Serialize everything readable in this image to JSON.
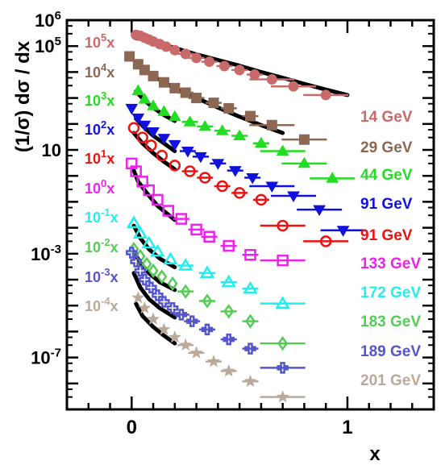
{
  "chart_data": {
    "type": "scatter",
    "title": "",
    "xlabel": "x",
    "ylabel": "(1/σ) dσ / dx",
    "xlim": [
      -0.3,
      1.4
    ],
    "ylim": [
      1e-09,
      1000000.0
    ],
    "yscale": "log",
    "grid": false,
    "x_ticks": [
      "0",
      "1"
    ],
    "y_ticks": [
      {
        "base": "10",
        "exp": "6"
      },
      {
        "base": "10",
        "exp": "5"
      },
      {
        "base": "10",
        "exp": ""
      },
      {
        "base": "10",
        "exp": "-3"
      },
      {
        "base": "10",
        "exp": "-7"
      }
    ],
    "series": [
      {
        "name": "14 GeV",
        "scale": {
          "base": "10",
          "exp": "5",
          "suffix": "x"
        },
        "color": "#c96a6a",
        "marker": "circle",
        "x": [
          0.02,
          0.04,
          0.06,
          0.08,
          0.1,
          0.13,
          0.16,
          0.2,
          0.25,
          0.3,
          0.36,
          0.43,
          0.5,
          0.57,
          0.65,
          0.75,
          0.9
        ],
        "y": [
          270000,
          250000,
          210000,
          180000,
          150000,
          120000,
          95000,
          70000,
          50000,
          35000,
          25000,
          17000,
          12000,
          8000,
          5200,
          2800,
          1300
        ]
      },
      {
        "name": "29 GeV",
        "scale": {
          "base": "10",
          "exp": "4",
          "suffix": "x"
        },
        "color": "#8c6752",
        "marker": "square",
        "x": [
          -0.01,
          0.03,
          0.06,
          0.1,
          0.15,
          0.2,
          0.25,
          0.3,
          0.38,
          0.45,
          0.55,
          0.65,
          0.8
        ],
        "y": [
          40000,
          20000,
          12000,
          7000,
          4000,
          2400,
          1600,
          1000,
          650,
          400,
          200,
          90,
          25
        ]
      },
      {
        "name": "44 GeV",
        "scale": {
          "base": "10",
          "exp": "3",
          "suffix": "x"
        },
        "color": "#22dd22",
        "marker": "triangle-up",
        "x": [
          0.03,
          0.06,
          0.1,
          0.15,
          0.2,
          0.27,
          0.34,
          0.42,
          0.5,
          0.6,
          0.7,
          0.8,
          0.93
        ],
        "y": [
          1900,
          900,
          500,
          300,
          190,
          120,
          80,
          55,
          35,
          18,
          9,
          3,
          0.8
        ]
      },
      {
        "name": "91 GeV",
        "scale": {
          "base": "10",
          "exp": "2",
          "suffix": "x"
        },
        "color": "#1111dd",
        "marker": "triangle-down",
        "x": [
          0.0,
          0.03,
          0.06,
          0.1,
          0.15,
          0.2,
          0.26,
          0.32,
          0.4,
          0.48,
          0.56,
          0.65,
          0.75,
          0.87,
          0.98
        ],
        "y": [
          400,
          170,
          90,
          50,
          28,
          16,
          9,
          5.5,
          3,
          1.6,
          0.85,
          0.4,
          0.17,
          0.05,
          0.008
        ]
      },
      {
        "name": "91 GeV",
        "scale": {
          "base": "10",
          "exp": "1",
          "suffix": "x"
        },
        "color": "#ee1111",
        "marker": "circle-open",
        "x": [
          0.01,
          0.05,
          0.09,
          0.14,
          0.2,
          0.27,
          0.34,
          0.42,
          0.5,
          0.6,
          0.7,
          0.9
        ],
        "y": [
          70,
          30,
          15,
          6,
          2.5,
          1.5,
          0.85,
          0.4,
          0.22,
          0.12,
          0.012,
          0.003
        ]
      },
      {
        "name": "133 GeV",
        "scale": {
          "base": "10",
          "exp": "0",
          "suffix": "x"
        },
        "color": "#ee22ee",
        "marker": "square-open",
        "x": [
          0.0,
          0.02,
          0.05,
          0.08,
          0.12,
          0.17,
          0.23,
          0.3,
          0.36,
          0.45,
          0.55,
          0.7
        ],
        "y": [
          3,
          1.5,
          0.6,
          0.28,
          0.12,
          0.045,
          0.022,
          0.0085,
          0.0045,
          0.002,
          0.0009,
          0.00055
        ]
      },
      {
        "name": "172 GeV",
        "scale": {
          "base": "10",
          "exp": "-1",
          "suffix": "x"
        },
        "color": "#22eeee",
        "marker": "triangle-up-open",
        "x": [
          0.01,
          0.04,
          0.08,
          0.12,
          0.18,
          0.25,
          0.35,
          0.45,
          0.55,
          0.7
        ],
        "y": [
          0.015,
          0.006,
          0.0025,
          0.0012,
          0.0006,
          0.00035,
          0.00018,
          8e-05,
          4.5e-05,
          1.2e-05
        ]
      },
      {
        "name": "183 GeV",
        "scale": {
          "base": "10",
          "exp": "-2",
          "suffix": "x"
        },
        "color": "#55cc55",
        "marker": "diamond-open",
        "x": [
          0.01,
          0.04,
          0.07,
          0.1,
          0.14,
          0.19,
          0.25,
          0.35,
          0.45,
          0.55,
          0.7
        ],
        "y": [
          0.0015,
          0.0008,
          0.0004,
          0.00022,
          0.00013,
          7e-05,
          3.5e-05,
          1.5e-05,
          6e-06,
          2.5e-06,
          3.5e-07
        ]
      },
      {
        "name": "189 GeV",
        "scale": {
          "base": "10",
          "exp": "-3",
          "suffix": "x"
        },
        "color": "#5555cc",
        "marker": "cross-open",
        "x": [
          0.0,
          0.02,
          0.04,
          0.06,
          0.09,
          0.12,
          0.15,
          0.19,
          0.23,
          0.28,
          0.35,
          0.45,
          0.55,
          0.7
        ],
        "y": [
          0.0011,
          0.0005,
          0.00022,
          0.0001,
          5e-05,
          2.5e-05,
          1.4e-05,
          8e-06,
          4.5e-06,
          2.5e-06,
          1.2e-06,
          5e-07,
          2.2e-07,
          4e-08
        ]
      },
      {
        "name": "201 GeV",
        "scale": {
          "base": "10",
          "exp": "-4",
          "suffix": "x"
        },
        "color": "#bbaa99",
        "marker": "star",
        "x": [
          0.03,
          0.06,
          0.1,
          0.15,
          0.2,
          0.25,
          0.3,
          0.38,
          0.45,
          0.55,
          0.7
        ],
        "y": [
          2e-05,
          8e-06,
          3e-06,
          1.2e-06,
          6e-07,
          3e-07,
          1.5e-07,
          7e-08,
          3e-08,
          1.2e-08,
          3e-09
        ]
      }
    ],
    "fits": [
      {
        "x": [
          0.02,
          0.05,
          0.1,
          0.2,
          0.3,
          0.4,
          0.5,
          0.6,
          0.7,
          0.8,
          0.9,
          1.0
        ],
        "y": [
          200000,
          190000,
          150000,
          85000,
          48000,
          29000,
          17500,
          10000,
          6000,
          3500,
          2100,
          1300
        ]
      },
      {
        "x": [
          0.02,
          0.05,
          0.1,
          0.15,
          0.2,
          0.3,
          0.4,
          0.5,
          0.6,
          0.7
        ],
        "y": [
          25000,
          14000,
          7000,
          4000,
          2400,
          1000,
          430,
          190,
          90,
          45
        ]
      },
      {
        "x": [
          0.02,
          0.06,
          0.1,
          0.15,
          0.2
        ],
        "y": [
          1800,
          800,
          420,
          220,
          130
        ]
      },
      {
        "x": [
          0.02,
          0.06,
          0.1,
          0.15,
          0.2
        ],
        "y": [
          160,
          70,
          35,
          18,
          9
        ]
      },
      {
        "x": [
          0.01,
          0.05,
          0.1,
          0.15,
          0.2
        ],
        "y": [
          45,
          18,
          7.5,
          3.5,
          1.8
        ]
      },
      {
        "x": [
          0.01,
          0.03,
          0.07,
          0.12,
          0.2
        ],
        "y": [
          1.6,
          0.6,
          0.22,
          0.07,
          0.02
        ]
      },
      {
        "x": [
          0.01,
          0.04,
          0.08,
          0.13,
          0.2
        ],
        "y": [
          0.012,
          0.004,
          0.0015,
          0.00065,
          0.0003
        ]
      },
      {
        "x": [
          0.01,
          0.04,
          0.08,
          0.13,
          0.2
        ],
        "y": [
          0.0012,
          0.00045,
          0.00018,
          8e-05,
          4e-05
        ]
      },
      {
        "x": [
          0.01,
          0.04,
          0.08,
          0.13,
          0.2
        ],
        "y": [
          0.00018,
          5e-05,
          1.8e-05,
          8e-06,
          3.5e-06
        ]
      },
      {
        "x": [
          0.02,
          0.05,
          0.1,
          0.15,
          0.2
        ],
        "y": [
          1.2e-05,
          4e-06,
          1.5e-06,
          7e-07,
          3.5e-07
        ]
      }
    ]
  }
}
